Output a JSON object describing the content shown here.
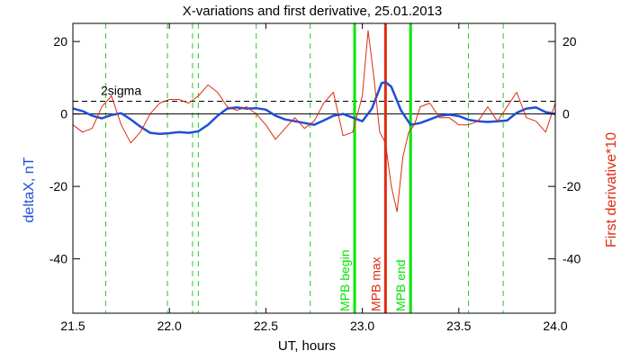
{
  "chart_data": {
    "type": "line",
    "title": "X-variations and first derivative, 25.01.2013",
    "xlabel": "UT, hours",
    "ylabel_left": "deltaX, nT",
    "ylabel_right": "First derivative*10",
    "xlim": [
      21.5,
      24.0
    ],
    "ylim": [
      -55,
      25
    ],
    "x_ticks": [
      21.5,
      22.0,
      22.5,
      23.0,
      23.5,
      24.0
    ],
    "x_tick_labels": [
      "21.5",
      "22.0",
      "22.5",
      "23.0",
      "23.5",
      "24.0"
    ],
    "y_ticks": [
      20,
      0,
      -20,
      -40
    ],
    "y_tick_labels": [
      "20",
      "0",
      "-20",
      "-40"
    ],
    "y_ticks_right": [
      20,
      0,
      -20,
      -40
    ],
    "y_tick_labels_right": [
      "20",
      "0",
      "-20",
      "-40"
    ],
    "grid": false,
    "sigma_label": "2sigma",
    "series": [
      {
        "name": "deltaX, nT",
        "color": "#1f4fd8",
        "x": [
          21.5,
          21.55,
          21.6,
          21.65,
          21.7,
          21.75,
          21.8,
          21.85,
          21.9,
          21.95,
          22.0,
          22.05,
          22.1,
          22.15,
          22.2,
          22.25,
          22.3,
          22.35,
          22.4,
          22.45,
          22.5,
          22.55,
          22.6,
          22.65,
          22.7,
          22.75,
          22.8,
          22.85,
          22.9,
          22.95,
          23.0,
          23.05,
          23.1,
          23.12,
          23.15,
          23.2,
          23.25,
          23.3,
          23.35,
          23.4,
          23.45,
          23.5,
          23.55,
          23.6,
          23.65,
          23.7,
          23.75,
          23.8,
          23.85,
          23.9,
          23.95,
          24.0
        ],
        "values": [
          1.5,
          0.8,
          -0.5,
          -1.2,
          -0.3,
          0.2,
          -1.5,
          -3.5,
          -5.2,
          -5.5,
          -5.3,
          -5.0,
          -5.2,
          -4.8,
          -3.0,
          -0.5,
          1.5,
          1.8,
          1.5,
          1.6,
          1.2,
          -0.5,
          -1.5,
          -2.0,
          -2.5,
          -3.0,
          -1.8,
          -0.5,
          0,
          -1,
          -2,
          1.5,
          8.5,
          8.8,
          7.5,
          1.0,
          -3.0,
          -2.5,
          -1.5,
          -0.5,
          -0.2,
          -0.6,
          -1.6,
          -2.0,
          -2.2,
          -2.0,
          -1.8,
          0.3,
          1.5,
          1.8,
          0.5,
          0
        ]
      },
      {
        "name": "First derivative*10",
        "color": "#dd2a10",
        "x": [
          21.5,
          21.55,
          21.6,
          21.65,
          21.7,
          21.75,
          21.8,
          21.85,
          21.9,
          21.95,
          22.0,
          22.05,
          22.1,
          22.15,
          22.2,
          22.25,
          22.3,
          22.35,
          22.4,
          22.45,
          22.5,
          22.55,
          22.6,
          22.65,
          22.7,
          22.75,
          22.8,
          22.85,
          22.9,
          22.95,
          23.0,
          23.03,
          23.06,
          23.09,
          23.12,
          23.15,
          23.18,
          23.21,
          23.24,
          23.27,
          23.3,
          23.35,
          23.4,
          23.45,
          23.5,
          23.55,
          23.6,
          23.65,
          23.7,
          23.75,
          23.8,
          23.85,
          23.9,
          23.95,
          24.0
        ],
        "values": [
          -3,
          -5,
          -4,
          2,
          5,
          -3,
          -8,
          -5,
          0,
          3,
          4,
          4,
          3,
          5,
          8,
          6,
          2,
          1,
          2,
          0,
          -3,
          -7,
          -4,
          -1,
          -4,
          -2,
          3,
          6,
          -6,
          -5,
          5,
          23,
          10,
          -5,
          -8,
          -20,
          -27,
          -12,
          -5,
          -3,
          2,
          3,
          -1,
          -1,
          -3,
          -3,
          -2,
          2,
          -2,
          2,
          6,
          -1,
          -2,
          -5,
          3
        ]
      }
    ],
    "thresholds": [
      {
        "y": 3.5,
        "style": "dashed",
        "color": "#000000"
      },
      {
        "y": 0,
        "style": "solid",
        "color": "#000000"
      }
    ],
    "vlines_dashed": [
      21.67,
      21.99,
      22.12,
      22.15,
      22.45,
      22.73,
      23.55,
      23.73
    ],
    "vlines_dashed_color": "#22cc22",
    "markers": [
      {
        "x": 22.96,
        "label": "MPB begin",
        "color": "#00e400"
      },
      {
        "x": 23.12,
        "label": "MPB max",
        "color": "#e02a10"
      },
      {
        "x": 23.25,
        "label": "MPB end",
        "color": "#00e400"
      }
    ]
  }
}
